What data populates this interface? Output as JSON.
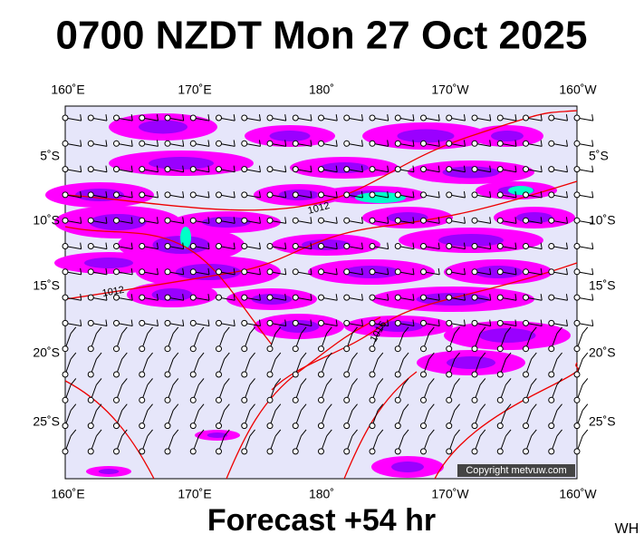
{
  "title": "0700 NZDT Mon 27 Oct 2025",
  "map": {
    "lon_labels_top": [
      "160˚E",
      "170˚E",
      "180˚",
      "170˚W",
      "160˚W"
    ],
    "lon_labels_bottom": [
      "160˚E",
      "170˚E",
      "180˚",
      "170˚W",
      "160˚W"
    ],
    "lat_labels_left": [
      "5˚S",
      "10˚S",
      "15˚S",
      "20˚S",
      "25˚S"
    ],
    "lat_labels_right": [
      "5˚S",
      "10˚S",
      "15˚S",
      "20˚S",
      "25˚S"
    ],
    "isobar_labels": [
      "1012",
      "1012",
      "1016"
    ],
    "copyright": "Copyright metvuw.com"
  },
  "footer": {
    "forecast": "Forecast +54 hr",
    "initials": "WH"
  }
}
